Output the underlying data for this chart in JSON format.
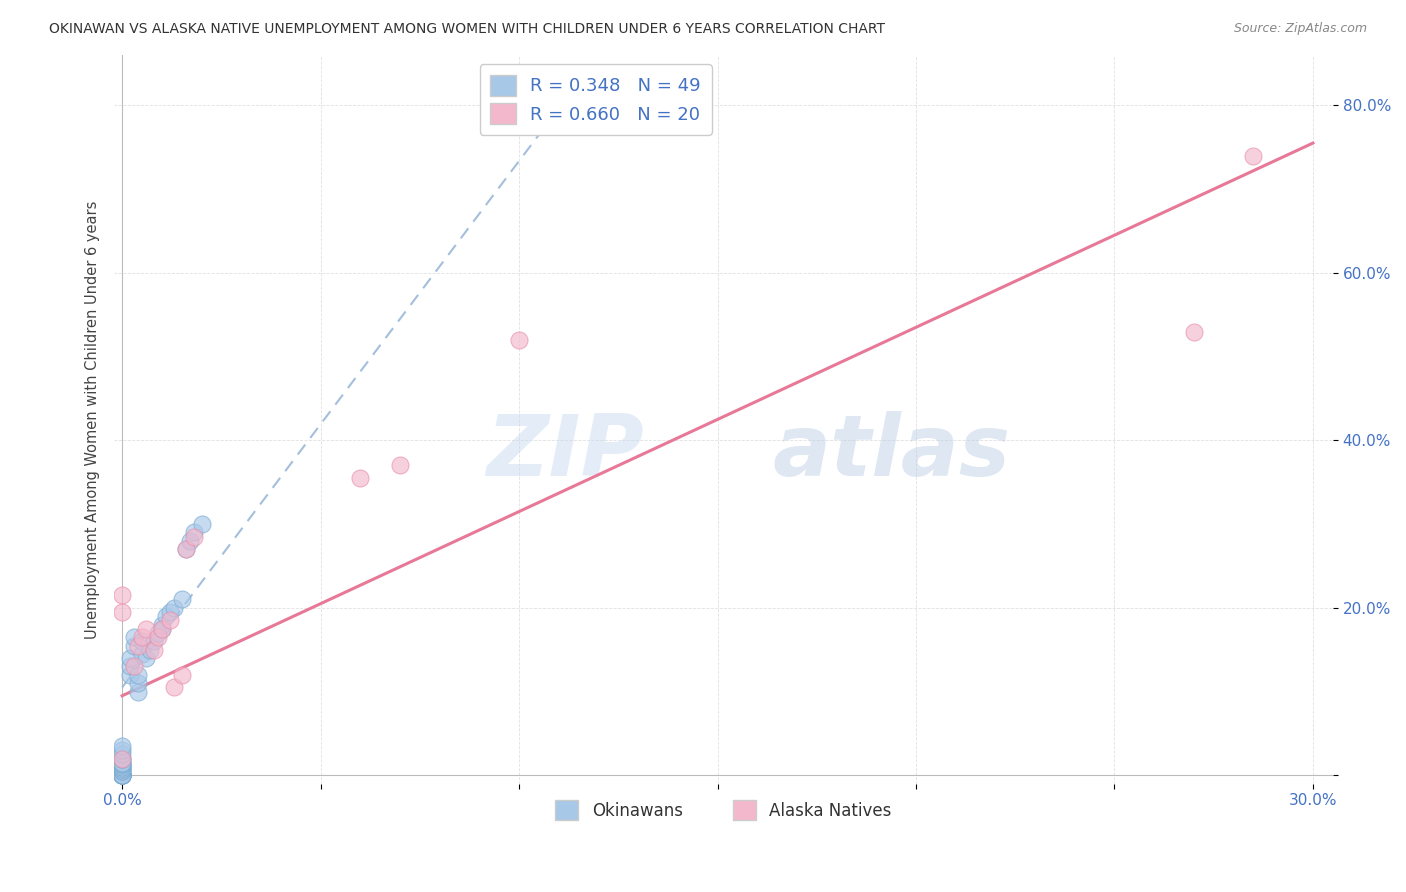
{
  "title": "OKINAWAN VS ALASKA NATIVE UNEMPLOYMENT AMONG WOMEN WITH CHILDREN UNDER 6 YEARS CORRELATION CHART",
  "source": "Source: ZipAtlas.com",
  "tick_color": "#4472c4",
  "ylabel": "Unemployment Among Women with Children Under 6 years",
  "x_ticks": [
    0.0,
    0.05,
    0.1,
    0.15,
    0.2,
    0.25,
    0.3
  ],
  "y_ticks": [
    0.0,
    0.2,
    0.4,
    0.6,
    0.8
  ],
  "xlim": [
    -0.002,
    0.305
  ],
  "ylim": [
    -0.01,
    0.86
  ],
  "background_color": "#ffffff",
  "grid_color": "#cccccc",
  "watermark_zip": "ZIP",
  "watermark_atlas": "atlas",
  "okinawan_color": "#a8c8e8",
  "okinawan_edge": "#7aaad0",
  "alaska_color": "#f4b8cc",
  "alaska_edge": "#e890aa",
  "okinawan_R": 0.348,
  "okinawan_N": 49,
  "alaska_R": 0.66,
  "alaska_N": 20,
  "okinawan_trendline_color": "#9ab8d8",
  "alaska_trendline_color": "#e87898",
  "legend_label_okinawan": "Okinawans",
  "legend_label_alaska": "Alaska Natives",
  "okinawan_x": [
    0.0,
    0.0,
    0.0,
    0.0,
    0.0,
    0.0,
    0.0,
    0.0,
    0.0,
    0.0,
    0.0,
    0.0,
    0.0,
    0.0,
    0.0,
    0.0,
    0.0,
    0.0,
    0.0,
    0.0,
    0.0,
    0.0,
    0.0,
    0.0,
    0.0,
    0.002,
    0.002,
    0.002,
    0.003,
    0.003,
    0.004,
    0.004,
    0.004,
    0.005,
    0.005,
    0.006,
    0.007,
    0.008,
    0.009,
    0.01,
    0.01,
    0.011,
    0.012,
    0.013,
    0.015,
    0.016,
    0.017,
    0.018,
    0.02
  ],
  "okinawan_y": [
    0.0,
    0.0,
    0.0,
    0.0,
    0.0,
    0.0,
    0.0,
    0.0,
    0.0,
    0.0,
    0.005,
    0.005,
    0.007,
    0.008,
    0.01,
    0.01,
    0.012,
    0.013,
    0.015,
    0.015,
    0.02,
    0.02,
    0.025,
    0.03,
    0.035,
    0.12,
    0.13,
    0.14,
    0.155,
    0.165,
    0.1,
    0.11,
    0.12,
    0.145,
    0.16,
    0.14,
    0.15,
    0.16,
    0.17,
    0.175,
    0.18,
    0.19,
    0.195,
    0.2,
    0.21,
    0.27,
    0.28,
    0.29,
    0.3
  ],
  "alaska_x": [
    0.0,
    0.0,
    0.0,
    0.003,
    0.004,
    0.005,
    0.006,
    0.008,
    0.009,
    0.01,
    0.012,
    0.013,
    0.015,
    0.016,
    0.018,
    0.06,
    0.07,
    0.1,
    0.27,
    0.285
  ],
  "alaska_y": [
    0.02,
    0.195,
    0.215,
    0.13,
    0.155,
    0.165,
    0.175,
    0.15,
    0.165,
    0.175,
    0.185,
    0.105,
    0.12,
    0.27,
    0.285,
    0.355,
    0.37,
    0.52,
    0.53,
    0.74
  ],
  "ok_trend_x0": 0.0,
  "ok_trend_y0": 0.105,
  "ok_trend_x1": 0.105,
  "ok_trend_y1": 0.765,
  "ak_trend_x0": 0.0,
  "ak_trend_y0": 0.095,
  "ak_trend_x1": 0.3,
  "ak_trend_y1": 0.755
}
